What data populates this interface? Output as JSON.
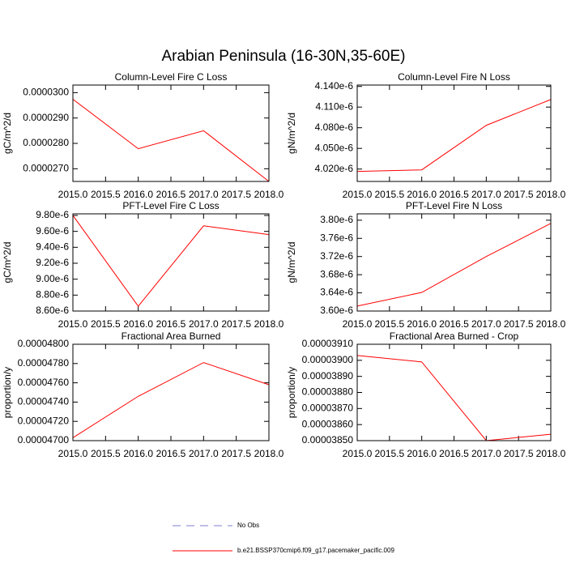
{
  "title": "Arabian Peninsula (16-30N,35-60E)",
  "legend": [
    {
      "label": "No Obs",
      "color": "#7f7fd0",
      "dash": true
    },
    {
      "label": "b.e21.BSSP370cmip6.f09_g17.pacemaker_pacific.009",
      "color": "#ff0000",
      "dash": false
    }
  ],
  "chart_data": [
    {
      "type": "line",
      "title": "Column-Level Fire C Loss",
      "y_label": "gC/m^2/d",
      "x": [
        2015,
        2016,
        2017,
        2018
      ],
      "series": [
        {
          "color": "#ff0000",
          "values": [
            2.974e-05,
            2.779e-05,
            2.85e-05,
            2.65e-05
          ]
        }
      ],
      "xlim": [
        2015,
        2018
      ],
      "xticks": [
        {
          "value": 2015,
          "label": "2015.0"
        },
        {
          "value": 2015.5,
          "label": "2015.5"
        },
        {
          "value": 2016,
          "label": "2016.0"
        },
        {
          "value": 2016.5,
          "label": "2016.5"
        },
        {
          "value": 2017,
          "label": "2017.0"
        },
        {
          "value": 2017.5,
          "label": "2017.5"
        },
        {
          "value": 2018,
          "label": "2018.0"
        }
      ],
      "ylim": [
        2.65e-05,
        3.03e-05
      ],
      "yticks": [
        {
          "value": 2.7e-05,
          "label": "0.0000270"
        },
        {
          "value": 2.8e-05,
          "label": "0.0000280"
        },
        {
          "value": 2.9e-05,
          "label": "0.0000290"
        },
        {
          "value": 3e-05,
          "label": "0.0000300"
        }
      ]
    },
    {
      "type": "line",
      "title": "Column-Level Fire N Loss",
      "y_label": "gN/m^2/d",
      "x": [
        2015,
        2016,
        2017,
        2018
      ],
      "series": [
        {
          "color": "#ff0000",
          "values": [
            4.0165e-06,
            4.0188e-06,
            4.0835e-06,
            4.121e-06
          ]
        }
      ],
      "xlim": [
        2015,
        2018
      ],
      "xticks": [
        {
          "value": 2015,
          "label": "2015.0"
        },
        {
          "value": 2015.5,
          "label": "2015.5"
        },
        {
          "value": 2016,
          "label": "2016.0"
        },
        {
          "value": 2016.5,
          "label": "2016.5"
        },
        {
          "value": 2017,
          "label": "2017.0"
        },
        {
          "value": 2017.5,
          "label": "2017.5"
        },
        {
          "value": 2018,
          "label": "2018.0"
        }
      ],
      "ylim": [
        4.002e-06,
        4.142e-06
      ],
      "yticks": [
        {
          "value": 4.02e-06,
          "label": "4.020e-6"
        },
        {
          "value": 4.05e-06,
          "label": "4.050e-6"
        },
        {
          "value": 4.08e-06,
          "label": "4.080e-6"
        },
        {
          "value": 4.11e-06,
          "label": "4.110e-6"
        },
        {
          "value": 4.14e-06,
          "label": "4.140e-6"
        }
      ]
    },
    {
      "type": "line",
      "title": "PFT-Level Fire C Loss",
      "y_label": "gC/m^2/d",
      "x": [
        2015,
        2016,
        2017,
        2018
      ],
      "series": [
        {
          "color": "#ff0000",
          "values": [
            9.8e-06,
            8.66e-06,
            9.67e-06,
            9.56e-06
          ]
        }
      ],
      "xlim": [
        2015,
        2018
      ],
      "xticks": [
        {
          "value": 2015,
          "label": "2015.0"
        },
        {
          "value": 2015.5,
          "label": "2015.5"
        },
        {
          "value": 2016,
          "label": "2016.0"
        },
        {
          "value": 2016.5,
          "label": "2016.5"
        },
        {
          "value": 2017,
          "label": "2017.0"
        },
        {
          "value": 2017.5,
          "label": "2017.5"
        },
        {
          "value": 2018,
          "label": "2018.0"
        }
      ],
      "ylim": [
        8.6e-06,
        9.82e-06
      ],
      "yticks": [
        {
          "value": 8.6e-06,
          "label": "8.60e-6"
        },
        {
          "value": 8.8e-06,
          "label": "8.80e-6"
        },
        {
          "value": 9e-06,
          "label": "9.00e-6"
        },
        {
          "value": 9.2e-06,
          "label": "9.20e-6"
        },
        {
          "value": 9.4e-06,
          "label": "9.40e-6"
        },
        {
          "value": 9.6e-06,
          "label": "9.60e-6"
        },
        {
          "value": 9.8e-06,
          "label": "9.80e-6"
        }
      ]
    },
    {
      "type": "line",
      "title": "PFT-Level Fire N Loss",
      "y_label": "gN/m^2/d",
      "x": [
        2015,
        2016,
        2017,
        2018
      ],
      "series": [
        {
          "color": "#ff0000",
          "values": [
            3.611e-06,
            3.641e-06,
            3.72e-06,
            3.793e-06
          ]
        }
      ],
      "xlim": [
        2015,
        2018
      ],
      "xticks": [
        {
          "value": 2015,
          "label": "2015.0"
        },
        {
          "value": 2015.5,
          "label": "2015.5"
        },
        {
          "value": 2016,
          "label": "2016.0"
        },
        {
          "value": 2016.5,
          "label": "2016.5"
        },
        {
          "value": 2017,
          "label": "2017.0"
        },
        {
          "value": 2017.5,
          "label": "2017.5"
        },
        {
          "value": 2018,
          "label": "2018.0"
        }
      ],
      "ylim": [
        3.6e-06,
        3.814e-06
      ],
      "yticks": [
        {
          "value": 3.6e-06,
          "label": "3.60e-6"
        },
        {
          "value": 3.64e-06,
          "label": "3.64e-6"
        },
        {
          "value": 3.68e-06,
          "label": "3.68e-6"
        },
        {
          "value": 3.72e-06,
          "label": "3.72e-6"
        },
        {
          "value": 3.76e-06,
          "label": "3.76e-6"
        },
        {
          "value": 3.8e-06,
          "label": "3.80e-6"
        }
      ]
    },
    {
      "type": "line",
      "title": "Fractional Area Burned",
      "y_label": "proportion/y",
      "x": [
        2015,
        2016,
        2017,
        2018
      ],
      "series": [
        {
          "color": "#ff0000",
          "values": [
            4.703e-05,
            4.746e-05,
            4.781e-05,
            4.758e-05
          ]
        }
      ],
      "xlim": [
        2015,
        2018
      ],
      "xticks": [
        {
          "value": 2015,
          "label": "2015.0"
        },
        {
          "value": 2015.5,
          "label": "2015.5"
        },
        {
          "value": 2016,
          "label": "2016.0"
        },
        {
          "value": 2016.5,
          "label": "2016.5"
        },
        {
          "value": 2017,
          "label": "2017.0"
        },
        {
          "value": 2017.5,
          "label": "2017.5"
        },
        {
          "value": 2018,
          "label": "2018.0"
        }
      ],
      "ylim": [
        4.7e-05,
        4.8e-05
      ],
      "yticks": [
        {
          "value": 4.7e-05,
          "label": "0.00004700"
        },
        {
          "value": 4.72e-05,
          "label": "0.00004720"
        },
        {
          "value": 4.74e-05,
          "label": "0.00004740"
        },
        {
          "value": 4.76e-05,
          "label": "0.00004760"
        },
        {
          "value": 4.78e-05,
          "label": "0.00004780"
        },
        {
          "value": 4.8e-05,
          "label": "0.00004800"
        }
      ]
    },
    {
      "type": "line",
      "title": "Fractional Area Burned - Crop",
      "y_label": "proportion/y",
      "x": [
        2015,
        2016,
        2017,
        2018
      ],
      "series": [
        {
          "color": "#ff0000",
          "values": [
            3.903e-05,
            3.899e-05,
            3.85e-05,
            3.854e-05
          ]
        }
      ],
      "xlim": [
        2015,
        2018
      ],
      "xticks": [
        {
          "value": 2015,
          "label": "2015.0"
        },
        {
          "value": 2015.5,
          "label": "2015.5"
        },
        {
          "value": 2016,
          "label": "2016.0"
        },
        {
          "value": 2016.5,
          "label": "2016.5"
        },
        {
          "value": 2017,
          "label": "2017.0"
        },
        {
          "value": 2017.5,
          "label": "2017.5"
        },
        {
          "value": 2018,
          "label": "2018.0"
        }
      ],
      "ylim": [
        3.85e-05,
        3.91e-05
      ],
      "yticks": [
        {
          "value": 3.85e-05,
          "label": "0.00003850"
        },
        {
          "value": 3.86e-05,
          "label": "0.00003860"
        },
        {
          "value": 3.87e-05,
          "label": "0.00003870"
        },
        {
          "value": 3.88e-05,
          "label": "0.00003880"
        },
        {
          "value": 3.89e-05,
          "label": "0.00003890"
        },
        {
          "value": 3.9e-05,
          "label": "0.00003900"
        },
        {
          "value": 3.91e-05,
          "label": "0.00003910"
        }
      ]
    }
  ]
}
